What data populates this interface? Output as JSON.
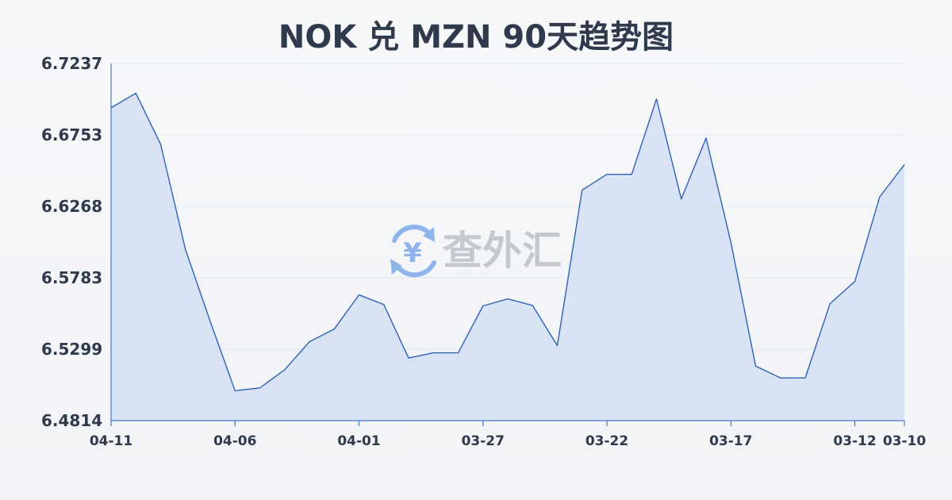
{
  "chart_data": {
    "type": "area",
    "title": "NOK 兑 MZN 90天趋势图",
    "y_ticks": [
      "6.7237",
      "6.6753",
      "6.6268",
      "6.5783",
      "6.5299",
      "6.4814"
    ],
    "ylim": [
      6.4814,
      6.7237
    ],
    "x_ticks": [
      "04-11",
      "04-06",
      "04-01",
      "03-27",
      "03-22",
      "03-17",
      "03-12",
      "03-10"
    ],
    "x_tick_index": [
      0,
      5,
      10,
      15,
      20,
      25,
      30,
      32
    ],
    "grid": true,
    "values": [
      6.6937,
      6.7035,
      6.6689,
      6.5975,
      6.5487,
      6.5017,
      6.5036,
      6.5159,
      6.5349,
      6.5435,
      6.5667,
      6.5602,
      6.5239,
      6.5274,
      6.5274,
      6.5592,
      6.564,
      6.5596,
      6.5323,
      6.6378,
      6.6485,
      6.6485,
      6.6996,
      6.6318,
      6.6731,
      6.6025,
      6.5184,
      6.5104,
      6.5104,
      6.5608,
      6.5758,
      6.6331,
      6.6551
    ]
  },
  "watermark": {
    "text": "查外汇",
    "icon": "yen-exchange-icon",
    "icon_glyph": "¥",
    "color": "#8fb4ec"
  },
  "colors": {
    "line": "#2f62b6",
    "area": "#c9d8f3",
    "text": "#2f3a4c",
    "axis": "#4a78c8"
  }
}
